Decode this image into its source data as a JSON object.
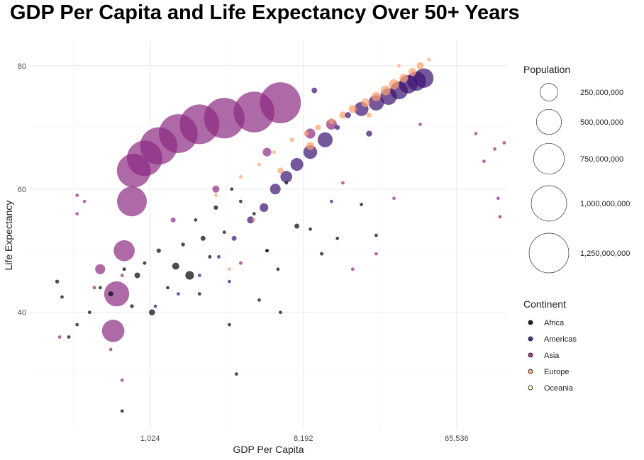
{
  "chart_data": {
    "type": "scatter",
    "title": "GDP Per Capita and Life Expectancy Over 50+ Years",
    "xlabel": "GDP Per Capita",
    "ylabel": "Life Expectancy",
    "x_scale": "log2",
    "xlim": [
      200,
      130000
    ],
    "ylim": [
      21,
      84
    ],
    "x_ticks": [
      1024,
      8192,
      65536
    ],
    "x_tick_labels": [
      "1,024",
      "8,192",
      "65,536"
    ],
    "y_ticks": [
      40,
      60,
      80
    ],
    "y_tick_labels": [
      "40",
      "60",
      "80"
    ],
    "grid": true,
    "legend_position": "right",
    "size_legend": {
      "title": "Population",
      "values": [
        250000000,
        500000000,
        750000000,
        1000000000,
        1250000000
      ],
      "labels": [
        "250,000,000",
        "500,000,000",
        "750,000,000",
        "1,000,000,000",
        "1,250,000,000"
      ]
    },
    "color_legend": {
      "title": "Continent",
      "entries": [
        {
          "name": "Africa",
          "color": "#000004"
        },
        {
          "name": "Americas",
          "color": "#3B0F70"
        },
        {
          "name": "Asia",
          "color": "#8C2981"
        },
        {
          "name": "Europe",
          "color": "#FE9F6D"
        },
        {
          "name": "Oceania",
          "color": "#FCFDBF"
        }
      ]
    },
    "series": [
      {
        "name": "Africa",
        "points": [
          [
            290,
            45,
            12000000
          ],
          [
            310,
            42.5,
            6000000
          ],
          [
            340,
            36,
            3000000
          ],
          [
            380,
            38,
            4000000
          ],
          [
            450,
            40,
            5000000
          ],
          [
            520,
            44,
            8000000
          ],
          [
            600,
            43,
            20000000
          ],
          [
            700,
            24,
            1500000
          ],
          [
            720,
            47,
            10000000
          ],
          [
            800,
            41,
            12000000
          ],
          [
            860,
            46,
            25000000
          ],
          [
            950,
            48,
            10000000
          ],
          [
            1050,
            40,
            30000000
          ],
          [
            1150,
            50,
            15000000
          ],
          [
            1300,
            44,
            8000000
          ],
          [
            1450,
            47.5,
            40000000
          ],
          [
            1600,
            51,
            12000000
          ],
          [
            1750,
            46,
            60000000
          ],
          [
            1900,
            55,
            8000000
          ],
          [
            2100,
            52,
            20000000
          ],
          [
            2300,
            49,
            10000000
          ],
          [
            2500,
            57,
            15000000
          ],
          [
            2800,
            53,
            5000000
          ],
          [
            3100,
            60,
            8000000
          ],
          [
            3500,
            58,
            3000000
          ],
          [
            4200,
            56,
            4000000
          ],
          [
            5000,
            50,
            2000000
          ],
          [
            5800,
            47,
            6000000
          ],
          [
            6500,
            61,
            3000000
          ],
          [
            7500,
            54,
            20000000
          ],
          [
            9000,
            53.5,
            8000000
          ],
          [
            10500,
            49.5,
            10000000
          ],
          [
            13000,
            52,
            2000000
          ],
          [
            18000,
            57.5,
            1000000
          ],
          [
            22000,
            52.5,
            1000000
          ],
          [
            3000,
            38,
            1000000
          ],
          [
            4500,
            42,
            2000000
          ],
          [
            2000,
            43,
            3000000
          ],
          [
            3300,
            30,
            2000000
          ],
          [
            6000,
            40,
            3000000
          ]
        ]
      },
      {
        "name": "Americas",
        "points": [
          [
            1100,
            41,
            3000000
          ],
          [
            1500,
            43,
            4000000
          ],
          [
            2000,
            46,
            6000000
          ],
          [
            2600,
            49,
            10000000
          ],
          [
            3200,
            52,
            20000000
          ],
          [
            4000,
            55,
            40000000
          ],
          [
            4800,
            57,
            60000000
          ],
          [
            5600,
            60,
            90000000
          ],
          [
            6500,
            62,
            110000000
          ],
          [
            7500,
            64,
            130000000
          ],
          [
            9000,
            66,
            150000000
          ],
          [
            11000,
            68,
            180000000
          ],
          [
            13000,
            70,
            20000000
          ],
          [
            15000,
            72,
            30000000
          ],
          [
            18000,
            73,
            160000000
          ],
          [
            22000,
            74,
            190000000
          ],
          [
            26000,
            75,
            220000000
          ],
          [
            30000,
            76,
            250000000
          ],
          [
            34000,
            77,
            270000000
          ],
          [
            38000,
            77.5,
            290000000
          ],
          [
            42000,
            78,
            300000000
          ],
          [
            9500,
            76,
            25000000
          ],
          [
            12000,
            58,
            5000000
          ],
          [
            5000,
            50,
            8000000
          ],
          [
            3000,
            45,
            2000000
          ],
          [
            20000,
            69,
            30000000
          ]
        ]
      },
      {
        "name": "Asia",
        "points": [
          [
            300,
            36,
            4000000
          ],
          [
            380,
            59,
            5000000
          ],
          [
            420,
            58,
            5000000
          ],
          [
            480,
            44,
            10000000
          ],
          [
            520,
            47,
            80000000
          ],
          [
            620,
            37,
            400000000
          ],
          [
            650,
            43,
            500000000
          ],
          [
            720,
            50,
            350000000
          ],
          [
            800,
            58,
            700000000
          ],
          [
            820,
            63,
            900000000
          ],
          [
            950,
            65,
            1000000000
          ],
          [
            1150,
            67,
            1100000000
          ],
          [
            1500,
            69,
            1200000000
          ],
          [
            2000,
            70.5,
            1250000000
          ],
          [
            2800,
            71.5,
            1300000000
          ],
          [
            4200,
            72.5,
            1320000000
          ],
          [
            6000,
            74,
            1330000000
          ],
          [
            700,
            46,
            3000000
          ],
          [
            1400,
            55,
            20000000
          ],
          [
            2500,
            60,
            40000000
          ],
          [
            3500,
            48,
            10000000
          ],
          [
            5000,
            66,
            60000000
          ],
          [
            9000,
            69,
            80000000
          ],
          [
            12000,
            70.5,
            90000000
          ],
          [
            14000,
            61,
            2000000
          ],
          [
            16000,
            47,
            1500000
          ],
          [
            22000,
            49.5,
            1000000
          ],
          [
            28000,
            58.5,
            2000000
          ],
          [
            40000,
            70.5,
            4000000
          ],
          [
            85000,
            69,
            500000
          ],
          [
            95000,
            64.5,
            600000
          ],
          [
            110000,
            66.5,
            700000
          ],
          [
            115000,
            58.5,
            500000
          ],
          [
            118000,
            55.5,
            400000
          ],
          [
            125000,
            67.5,
            600000
          ],
          [
            380,
            56,
            3000000
          ],
          [
            700,
            29,
            2000000
          ],
          [
            600,
            34,
            3000000
          ]
        ]
      },
      {
        "name": "Europe",
        "points": [
          [
            2500,
            59,
            4000000
          ],
          [
            3500,
            62,
            6000000
          ],
          [
            4500,
            64,
            8000000
          ],
          [
            5500,
            66,
            10000000
          ],
          [
            7000,
            68,
            15000000
          ],
          [
            8500,
            69,
            20000000
          ],
          [
            10000,
            70,
            25000000
          ],
          [
            12000,
            71,
            30000000
          ],
          [
            14000,
            72,
            40000000
          ],
          [
            16000,
            73,
            50000000
          ],
          [
            19000,
            74,
            60000000
          ],
          [
            22000,
            75,
            70000000
          ],
          [
            25000,
            76,
            75000000
          ],
          [
            28000,
            77,
            80000000
          ],
          [
            32000,
            78,
            60000000
          ],
          [
            36000,
            79,
            50000000
          ],
          [
            40000,
            80,
            40000000
          ],
          [
            45000,
            81,
            10000000
          ],
          [
            6000,
            63,
            30000000
          ],
          [
            9000,
            67,
            50000000
          ],
          [
            3000,
            47,
            5000000
          ],
          [
            4200,
            55,
            8000000
          ],
          [
            20000,
            72,
            20000000
          ],
          [
            30000,
            80,
            5000000
          ]
        ]
      },
      {
        "name": "Oceania",
        "points": []
      }
    ]
  }
}
